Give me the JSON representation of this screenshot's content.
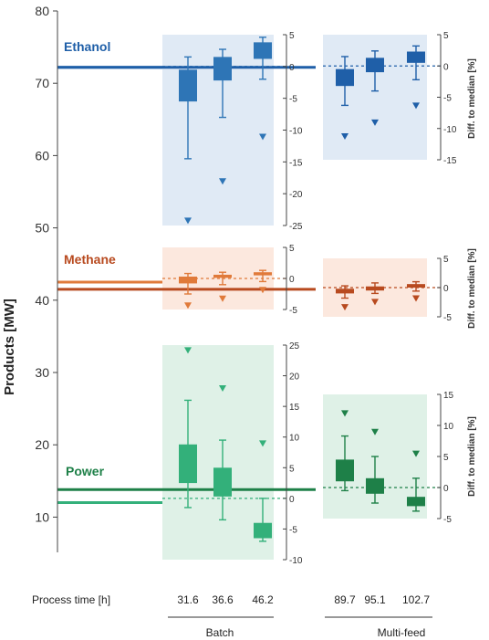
{
  "chart_data": {
    "type": "box",
    "ylabel": "Products [MW]",
    "ylim": [
      5,
      80
    ],
    "yticks": [
      10,
      20,
      30,
      40,
      50,
      60,
      70,
      80
    ],
    "diff_axis_label": "Diff. to median [%]",
    "xlabel": "Process time [h]",
    "groups": [
      {
        "label": "Batch",
        "categories": [
          "31.6",
          "36.6",
          "46.2"
        ]
      },
      {
        "label": "Multi-feed",
        "categories": [
          "89.7",
          "95.1",
          "102.7"
        ]
      }
    ],
    "colors": {
      "ethanol": "#2e75b6",
      "ethanol_dark": "#1f5fa8",
      "ethanol_bg": "#dae6f3",
      "methane": "#e07a3a",
      "methane_dark": "#b84a1f",
      "methane_bg": "#fbe4d8",
      "power": "#33b07a",
      "power_dark": "#1e8048",
      "power_bg": "#d9efe3"
    },
    "series": [
      {
        "name": "Ethanol",
        "key": "ethanol",
        "batch_median_mw": 72.2,
        "multifeed_median_mw": 72.2,
        "batch_diff_axis": {
          "ticks": [
            5,
            0,
            -5,
            -10,
            -15,
            -20,
            -25
          ],
          "range": [
            -25,
            5
          ]
        },
        "multifeed_diff_axis": {
          "ticks": [
            5,
            0,
            -5,
            -10,
            -15
          ],
          "range": [
            -15,
            5
          ]
        },
        "batch_boxes": [
          {
            "category": "31.6",
            "whisker_low": -14.5,
            "q1": -5.5,
            "q3": -0.5,
            "whisker_high": 1.5,
            "outlier": -24.2
          },
          {
            "category": "36.6",
            "whisker_low": -8.0,
            "q1": -2.2,
            "q3": 1.5,
            "whisker_high": 2.7,
            "outlier": -18.0
          },
          {
            "category": "46.2",
            "whisker_low": -2.0,
            "q1": 1.2,
            "q3": 3.8,
            "whisker_high": 4.6,
            "outlier": -11.0
          }
        ],
        "multifeed_boxes": [
          {
            "category": "89.7",
            "whisker_low": -6.3,
            "q1": -3.2,
            "q3": -0.5,
            "whisker_high": 1.5,
            "outlier": -11.2
          },
          {
            "category": "95.1",
            "whisker_low": -4.0,
            "q1": -1.0,
            "q3": 1.3,
            "whisker_high": 2.4,
            "outlier": -9.0
          },
          {
            "category": "102.7",
            "whisker_low": -2.2,
            "q1": 0.5,
            "q3": 2.3,
            "whisker_high": 3.2,
            "outlier": -6.3
          }
        ]
      },
      {
        "name": "Methane",
        "key": "methane",
        "batch_median_mw": 42.5,
        "multifeed_median_mw": 41.5,
        "batch_diff_axis": {
          "ticks": [
            5,
            0,
            -5
          ],
          "range": [
            -5,
            5
          ]
        },
        "multifeed_diff_axis": {
          "ticks": [
            5,
            0,
            -5
          ],
          "range": [
            -5,
            5
          ]
        },
        "batch_boxes": [
          {
            "category": "31.6",
            "whisker_low": -2.5,
            "q1": -0.8,
            "q3": 0.3,
            "whisker_high": 0.8,
            "outlier": -4.3
          },
          {
            "category": "36.6",
            "whisker_low": -1.0,
            "q1": 0.1,
            "q3": 0.6,
            "whisker_high": 1.0,
            "outlier": -3.2
          },
          {
            "category": "46.2",
            "whisker_low": -0.5,
            "q1": 0.5,
            "q3": 1.0,
            "whisker_high": 1.3,
            "outlier": -1.8
          }
        ],
        "multifeed_boxes": [
          {
            "category": "89.7",
            "whisker_low": -1.8,
            "q1": -1.0,
            "q3": -0.2,
            "whisker_high": 0.3,
            "outlier": -3.3
          },
          {
            "category": "95.1",
            "whisker_low": -1.0,
            "q1": -0.5,
            "q3": 0.2,
            "whisker_high": 0.8,
            "outlier": -2.4
          },
          {
            "category": "102.7",
            "whisker_low": -0.6,
            "q1": 0.0,
            "q3": 0.6,
            "whisker_high": 1.0,
            "outlier": -1.8
          }
        ]
      },
      {
        "name": "Power",
        "key": "power",
        "batch_median_mw": 12.0,
        "multifeed_median_mw": 13.8,
        "batch_diff_axis": {
          "ticks": [
            25,
            20,
            15,
            10,
            5,
            0,
            -5,
            -10
          ],
          "range": [
            -10,
            25
          ]
        },
        "multifeed_diff_axis": {
          "ticks": [
            15,
            10,
            5,
            0,
            -5
          ],
          "range": [
            -5,
            15
          ]
        },
        "batch_boxes": [
          {
            "category": "31.6",
            "whisker_low": -1.5,
            "q1": 2.5,
            "q3": 8.8,
            "whisker_high": 16.0,
            "outlier": 24.2
          },
          {
            "category": "36.6",
            "whisker_low": -3.5,
            "q1": 0.3,
            "q3": 5.0,
            "whisker_high": 9.5,
            "outlier": 18.0
          },
          {
            "category": "46.2",
            "whisker_low": -7.0,
            "q1": -6.5,
            "q3": -4.0,
            "whisker_high": 0.0,
            "outlier": 9.0
          }
        ],
        "multifeed_boxes": [
          {
            "category": "89.7",
            "whisker_low": -0.5,
            "q1": 1.0,
            "q3": 4.5,
            "whisker_high": 8.3,
            "outlier": 12.0
          },
          {
            "category": "95.1",
            "whisker_low": -2.5,
            "q1": -1.0,
            "q3": 1.5,
            "whisker_high": 5.0,
            "outlier": 9.0
          },
          {
            "category": "102.7",
            "whisker_low": -3.8,
            "q1": -3.0,
            "q3": -1.5,
            "whisker_high": 1.5,
            "outlier": 5.5
          }
        ]
      }
    ]
  }
}
